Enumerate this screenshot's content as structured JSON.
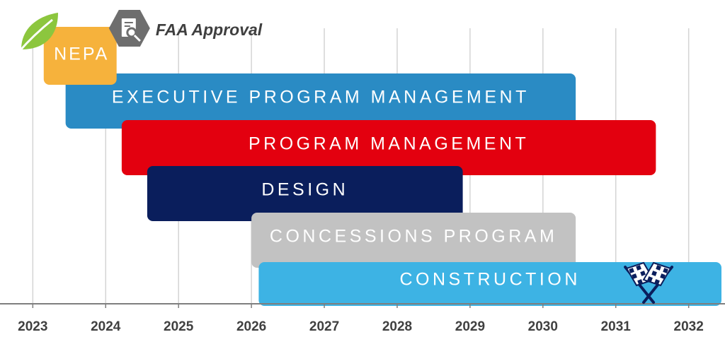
{
  "chart_data": {
    "type": "gantt",
    "title": "",
    "xlabel": "",
    "ylabel": "",
    "x_ticks": [
      "2023",
      "2024",
      "2025",
      "2026",
      "2027",
      "2028",
      "2029",
      "2030",
      "2031",
      "2032"
    ],
    "xlim": [
      2022.55,
      2032.45
    ],
    "tasks": [
      {
        "name": "EXECUTIVE PROGRAM MANAGEMENT",
        "start": 2023.45,
        "end": 2030.45,
        "color": "#2a8bc4"
      },
      {
        "name": "PROGRAM MANAGEMENT",
        "start": 2024.22,
        "end": 2031.55,
        "color": "#e3000f"
      },
      {
        "name": "DESIGN",
        "start": 2024.57,
        "end": 2028.9,
        "color": "#0a1e5c"
      },
      {
        "name": "CONCESSIONS PROGRAM",
        "start": 2026.0,
        "end": 2030.45,
        "color": "#c2c2c2"
      },
      {
        "name": "CONSTRUCTION",
        "start": 2026.1,
        "end": 2032.5,
        "color": "#3db3e4"
      }
    ],
    "milestones": [
      {
        "label": "NEPA",
        "start": 2023.15,
        "end": 2024.15,
        "color": "#f6b23c",
        "icon": "leaf-icon"
      },
      {
        "label": "FAA Approval",
        "at": 2024.2,
        "color": "#6e6e6e",
        "icon": "document-search-icon"
      },
      {
        "label": "",
        "at": 2031.45,
        "icon": "checkered-flags-icon"
      }
    ],
    "grid": true
  }
}
